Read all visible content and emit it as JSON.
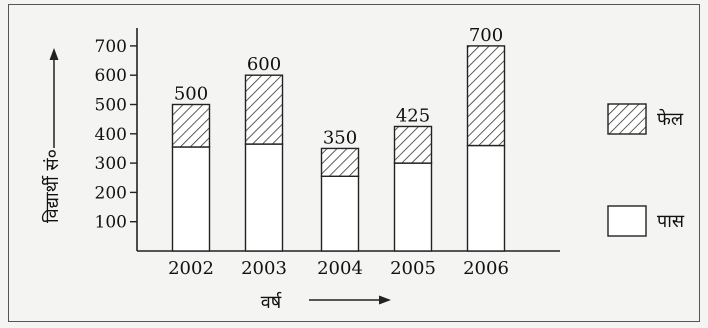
{
  "chart_data": {
    "type": "bar",
    "stacked": true,
    "categories": [
      "2002",
      "2003",
      "2004",
      "2005",
      "2006"
    ],
    "series": [
      {
        "name": "पास",
        "values": [
          355,
          365,
          255,
          300,
          360
        ]
      },
      {
        "name": "फेल",
        "values": [
          145,
          235,
          95,
          125,
          340
        ]
      }
    ],
    "totals": [
      500,
      600,
      350,
      425,
      700
    ],
    "total_labels": [
      "500",
      "600",
      "350",
      "425",
      "700"
    ],
    "xlabel": "वर्ष",
    "ylabel": "विद्यार्थी सं०",
    "ylim": [
      0,
      700
    ],
    "yticks": [
      100,
      200,
      300,
      400,
      500,
      600,
      700
    ],
    "ytick_labels": [
      "100",
      "200",
      "300",
      "400",
      "500",
      "600",
      "700"
    ],
    "grid": false,
    "legend_position": "right",
    "colors": {
      "outline": "#222222",
      "fill": "#ffffff",
      "hatch": "#333333"
    }
  }
}
